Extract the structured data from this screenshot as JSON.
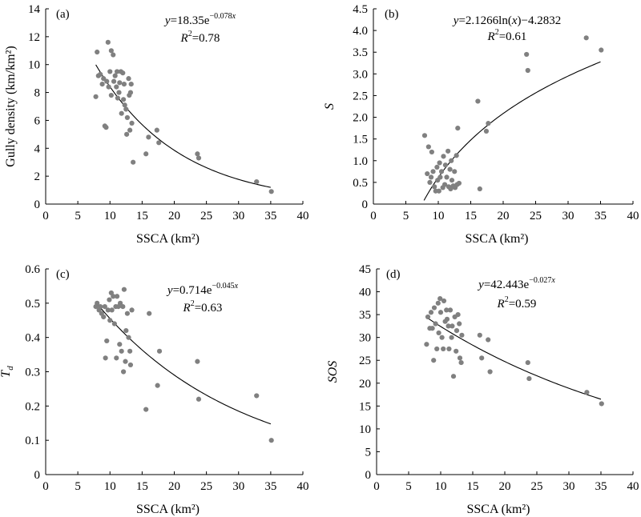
{
  "chart_data": [
    {
      "id": "a",
      "type": "scatter",
      "panel_label": "(a)",
      "xlabel": "SSCA (km²)",
      "ylabel": "Gully density (km/km²)",
      "xlim": [
        0,
        40
      ],
      "ylim": [
        0,
        14
      ],
      "xticks": [
        0,
        5,
        10,
        15,
        20,
        25,
        30,
        35,
        40
      ],
      "yticks": [
        0,
        2,
        4,
        6,
        8,
        10,
        12,
        14
      ],
      "equation": {
        "prefix": "y=18.35e",
        "exponent": "−0.078x"
      },
      "r2": {
        "value": "=0.78"
      },
      "fit": {
        "kind": "exp",
        "a": 18.35,
        "b": -0.078,
        "x_range": [
          7.8,
          35
        ]
      },
      "points": [
        [
          7.8,
          7.7
        ],
        [
          8.0,
          10.9
        ],
        [
          8.2,
          9.2
        ],
        [
          8.5,
          9.3
        ],
        [
          8.8,
          8.6
        ],
        [
          9.0,
          9.0
        ],
        [
          9.2,
          5.6
        ],
        [
          9.4,
          5.5
        ],
        [
          9.5,
          8.8
        ],
        [
          9.7,
          11.6
        ],
        [
          9.8,
          8.4
        ],
        [
          10.0,
          9.5
        ],
        [
          10.2,
          11.0
        ],
        [
          10.2,
          7.8
        ],
        [
          10.5,
          10.7
        ],
        [
          10.6,
          8.8
        ],
        [
          10.8,
          9.2
        ],
        [
          11.0,
          8.4
        ],
        [
          11.1,
          9.5
        ],
        [
          11.2,
          7.6
        ],
        [
          11.4,
          8.0
        ],
        [
          11.5,
          8.7
        ],
        [
          11.7,
          9.5
        ],
        [
          11.8,
          6.5
        ],
        [
          12.0,
          9.4
        ],
        [
          12.1,
          7.5
        ],
        [
          12.2,
          8.6
        ],
        [
          12.3,
          7.1
        ],
        [
          12.5,
          6.8
        ],
        [
          12.6,
          5.0
        ],
        [
          12.7,
          6.2
        ],
        [
          12.9,
          9.0
        ],
        [
          13.0,
          7.8
        ],
        [
          13.1,
          5.3
        ],
        [
          13.2,
          8.0
        ],
        [
          13.3,
          8.6
        ],
        [
          13.4,
          5.8
        ],
        [
          13.6,
          3.0
        ],
        [
          15.6,
          3.6
        ],
        [
          16.0,
          4.8
        ],
        [
          17.3,
          5.3
        ],
        [
          17.6,
          4.4
        ],
        [
          23.6,
          3.6
        ],
        [
          23.8,
          3.3
        ],
        [
          32.8,
          1.6
        ],
        [
          35.1,
          0.9
        ]
      ]
    },
    {
      "id": "b",
      "type": "scatter",
      "panel_label": "(b)",
      "xlabel": "SSCA (km²)",
      "ylabel": "S",
      "xlim": [
        0,
        40
      ],
      "ylim": [
        0,
        4.5
      ],
      "xticks": [
        0,
        5,
        10,
        15,
        20,
        25,
        30,
        35,
        40
      ],
      "yticks": [
        0,
        0.5,
        1,
        1.5,
        2,
        2.5,
        3,
        3.5,
        4,
        4.5
      ],
      "ytick_labels": [
        "0",
        "0.5",
        "1.0",
        "1.5",
        "2.0",
        "2.5",
        "3.0",
        "3.5",
        "4.0",
        "4.5"
      ],
      "equation": {
        "prefix": "y=2.1266ln(x)−4.2832",
        "exponent": ""
      },
      "r2": {
        "value": "=0.61"
      },
      "fit": {
        "kind": "log",
        "a": 2.1266,
        "b": -4.2832,
        "x_range": [
          7.8,
          35
        ]
      },
      "points": [
        [
          7.9,
          1.58
        ],
        [
          8.3,
          0.7
        ],
        [
          8.5,
          1.32
        ],
        [
          8.7,
          0.5
        ],
        [
          8.9,
          0.62
        ],
        [
          9.0,
          1.2
        ],
        [
          9.2,
          0.75
        ],
        [
          9.4,
          0.4
        ],
        [
          9.6,
          0.3
        ],
        [
          9.8,
          0.85
        ],
        [
          9.9,
          0.55
        ],
        [
          10.1,
          0.3
        ],
        [
          10.2,
          0.95
        ],
        [
          10.3,
          0.62
        ],
        [
          10.5,
          0.75
        ],
        [
          10.7,
          0.38
        ],
        [
          10.8,
          1.1
        ],
        [
          11.0,
          0.45
        ],
        [
          11.1,
          0.9
        ],
        [
          11.3,
          0.62
        ],
        [
          11.5,
          1.22
        ],
        [
          11.6,
          0.4
        ],
        [
          11.8,
          0.8
        ],
        [
          11.9,
          0.35
        ],
        [
          12.0,
          1.0
        ],
        [
          12.1,
          0.55
        ],
        [
          12.3,
          0.42
        ],
        [
          12.5,
          0.75
        ],
        [
          12.6,
          0.38
        ],
        [
          12.8,
          1.12
        ],
        [
          12.9,
          0.45
        ],
        [
          13.0,
          1.75
        ],
        [
          13.2,
          0.48
        ],
        [
          16.1,
          2.37
        ],
        [
          16.4,
          0.35
        ],
        [
          17.4,
          1.68
        ],
        [
          17.7,
          1.86
        ],
        [
          23.6,
          3.45
        ],
        [
          23.8,
          3.08
        ],
        [
          32.8,
          3.83
        ],
        [
          35.1,
          3.55
        ]
      ]
    },
    {
      "id": "c",
      "type": "scatter",
      "panel_label": "(c)",
      "xlabel": "SSCA (km²)",
      "ylabel": "Td",
      "ylabel_main": "T",
      "ylabel_sub": "d",
      "xlim": [
        0,
        40
      ],
      "ylim": [
        0,
        0.6
      ],
      "xticks": [
        0,
        5,
        10,
        15,
        20,
        25,
        30,
        35,
        40
      ],
      "yticks": [
        0,
        0.1,
        0.2,
        0.3,
        0.4,
        0.5,
        0.6
      ],
      "equation": {
        "prefix": "y=0.714e",
        "exponent": "−0.045x"
      },
      "r2": {
        "value": "=0.63"
      },
      "fit": {
        "kind": "exp",
        "a": 0.714,
        "b": -0.045,
        "x_range": [
          7.8,
          35
        ]
      },
      "points": [
        [
          7.8,
          0.49
        ],
        [
          8.0,
          0.5
        ],
        [
          8.3,
          0.48
        ],
        [
          8.5,
          0.49
        ],
        [
          8.7,
          0.47
        ],
        [
          9.0,
          0.46
        ],
        [
          9.2,
          0.49
        ],
        [
          9.3,
          0.34
        ],
        [
          9.5,
          0.39
        ],
        [
          9.7,
          0.48
        ],
        [
          9.9,
          0.51
        ],
        [
          10.0,
          0.45
        ],
        [
          10.2,
          0.53
        ],
        [
          10.3,
          0.48
        ],
        [
          10.5,
          0.52
        ],
        [
          10.7,
          0.44
        ],
        [
          10.9,
          0.49
        ],
        [
          11.0,
          0.34
        ],
        [
          11.1,
          0.52
        ],
        [
          11.3,
          0.49
        ],
        [
          11.5,
          0.38
        ],
        [
          11.6,
          0.5
        ],
        [
          11.8,
          0.36
        ],
        [
          12.0,
          0.49
        ],
        [
          12.1,
          0.3
        ],
        [
          12.2,
          0.54
        ],
        [
          12.4,
          0.33
        ],
        [
          12.5,
          0.42
        ],
        [
          12.7,
          0.47
        ],
        [
          12.9,
          0.4
        ],
        [
          13.1,
          0.36
        ],
        [
          13.2,
          0.32
        ],
        [
          13.4,
          0.48
        ],
        [
          15.6,
          0.19
        ],
        [
          16.1,
          0.47
        ],
        [
          17.4,
          0.26
        ],
        [
          17.7,
          0.36
        ],
        [
          23.6,
          0.33
        ],
        [
          23.8,
          0.22
        ],
        [
          32.8,
          0.23
        ],
        [
          35.1,
          0.1
        ]
      ]
    },
    {
      "id": "d",
      "type": "scatter",
      "panel_label": "(d)",
      "xlabel": "SSCA (km²)",
      "ylabel": "SOS",
      "xlim": [
        0,
        40
      ],
      "ylim": [
        0,
        45
      ],
      "xticks": [
        0,
        5,
        10,
        15,
        20,
        25,
        30,
        35,
        40
      ],
      "yticks": [
        0,
        5,
        10,
        15,
        20,
        25,
        30,
        35,
        40,
        45
      ],
      "equation": {
        "prefix": "y=42.443e",
        "exponent": "−0.027x"
      },
      "r2": {
        "value": "=0.59"
      },
      "fit": {
        "kind": "exp",
        "a": 42.443,
        "b": -0.027,
        "x_range": [
          7.8,
          35
        ]
      },
      "points": [
        [
          7.8,
          28.5
        ],
        [
          8.0,
          34.5
        ],
        [
          8.3,
          32.0
        ],
        [
          8.5,
          35.5
        ],
        [
          8.7,
          32.0
        ],
        [
          8.9,
          25.0
        ],
        [
          9.0,
          36.5
        ],
        [
          9.2,
          33.0
        ],
        [
          9.4,
          27.5
        ],
        [
          9.6,
          37.5
        ],
        [
          9.7,
          31.0
        ],
        [
          9.9,
          38.5
        ],
        [
          10.0,
          35.5
        ],
        [
          10.2,
          30.0
        ],
        [
          10.4,
          27.5
        ],
        [
          10.5,
          38.0
        ],
        [
          10.7,
          33.5
        ],
        [
          10.9,
          36.0
        ],
        [
          11.0,
          34.0
        ],
        [
          11.2,
          32.5
        ],
        [
          11.3,
          27.5
        ],
        [
          11.5,
          36.0
        ],
        [
          11.7,
          30.0
        ],
        [
          11.8,
          32.5
        ],
        [
          12.0,
          21.5
        ],
        [
          12.2,
          34.5
        ],
        [
          12.4,
          27.0
        ],
        [
          12.5,
          31.5
        ],
        [
          12.7,
          35.0
        ],
        [
          12.9,
          33.0
        ],
        [
          13.0,
          25.5
        ],
        [
          13.2,
          24.5
        ],
        [
          13.3,
          30.5
        ],
        [
          16.1,
          30.5
        ],
        [
          16.4,
          25.5
        ],
        [
          17.4,
          29.5
        ],
        [
          17.7,
          22.5
        ],
        [
          23.6,
          24.5
        ],
        [
          23.8,
          21.0
        ],
        [
          32.8,
          18.0
        ],
        [
          35.1,
          15.5
        ]
      ]
    }
  ]
}
